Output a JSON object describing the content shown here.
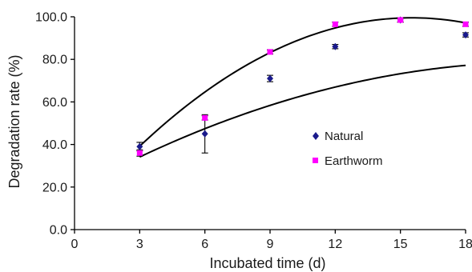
{
  "chart_data": {
    "type": "scatter",
    "title": "",
    "xlabel": "Incubated time (d)",
    "ylabel": "Degradation rate (%)",
    "xlim": [
      0,
      18
    ],
    "ylim": [
      0,
      100
    ],
    "x_ticks": [
      0,
      3,
      6,
      9,
      12,
      15,
      18
    ],
    "x_tick_labels": [
      "0",
      "3",
      "6",
      "9",
      "12",
      "15",
      "18"
    ],
    "y_ticks": [
      0,
      20,
      40,
      60,
      80,
      100
    ],
    "y_tick_labels": [
      "0.0",
      "20.0",
      "40.0",
      "60.0",
      "80.0",
      "100.0"
    ],
    "grid": false,
    "legend_position": "right-middle",
    "series": [
      {
        "name": "Natural",
        "marker": "diamond",
        "color": "#1a1a8c",
        "x": [
          3,
          6,
          9,
          12,
          15,
          18
        ],
        "y": [
          39,
          45,
          71,
          86,
          98.5,
          91.5
        ],
        "error": [
          2,
          9,
          1.5,
          1,
          1,
          1
        ],
        "trend_polynomial": [
          18.5,
          5.6,
          -0.13
        ]
      },
      {
        "name": "Earthworm",
        "marker": "square",
        "color": "#ff00ff",
        "x": [
          3,
          6,
          9,
          12,
          15,
          18
        ],
        "y": [
          36,
          52.5,
          83.5,
          96.5,
          98.5,
          96.5
        ],
        "error": [
          1.5,
          1,
          1,
          1,
          1,
          1
        ],
        "trend_polynomial": [
          6.8,
          11.95,
          -0.385
        ]
      }
    ]
  }
}
